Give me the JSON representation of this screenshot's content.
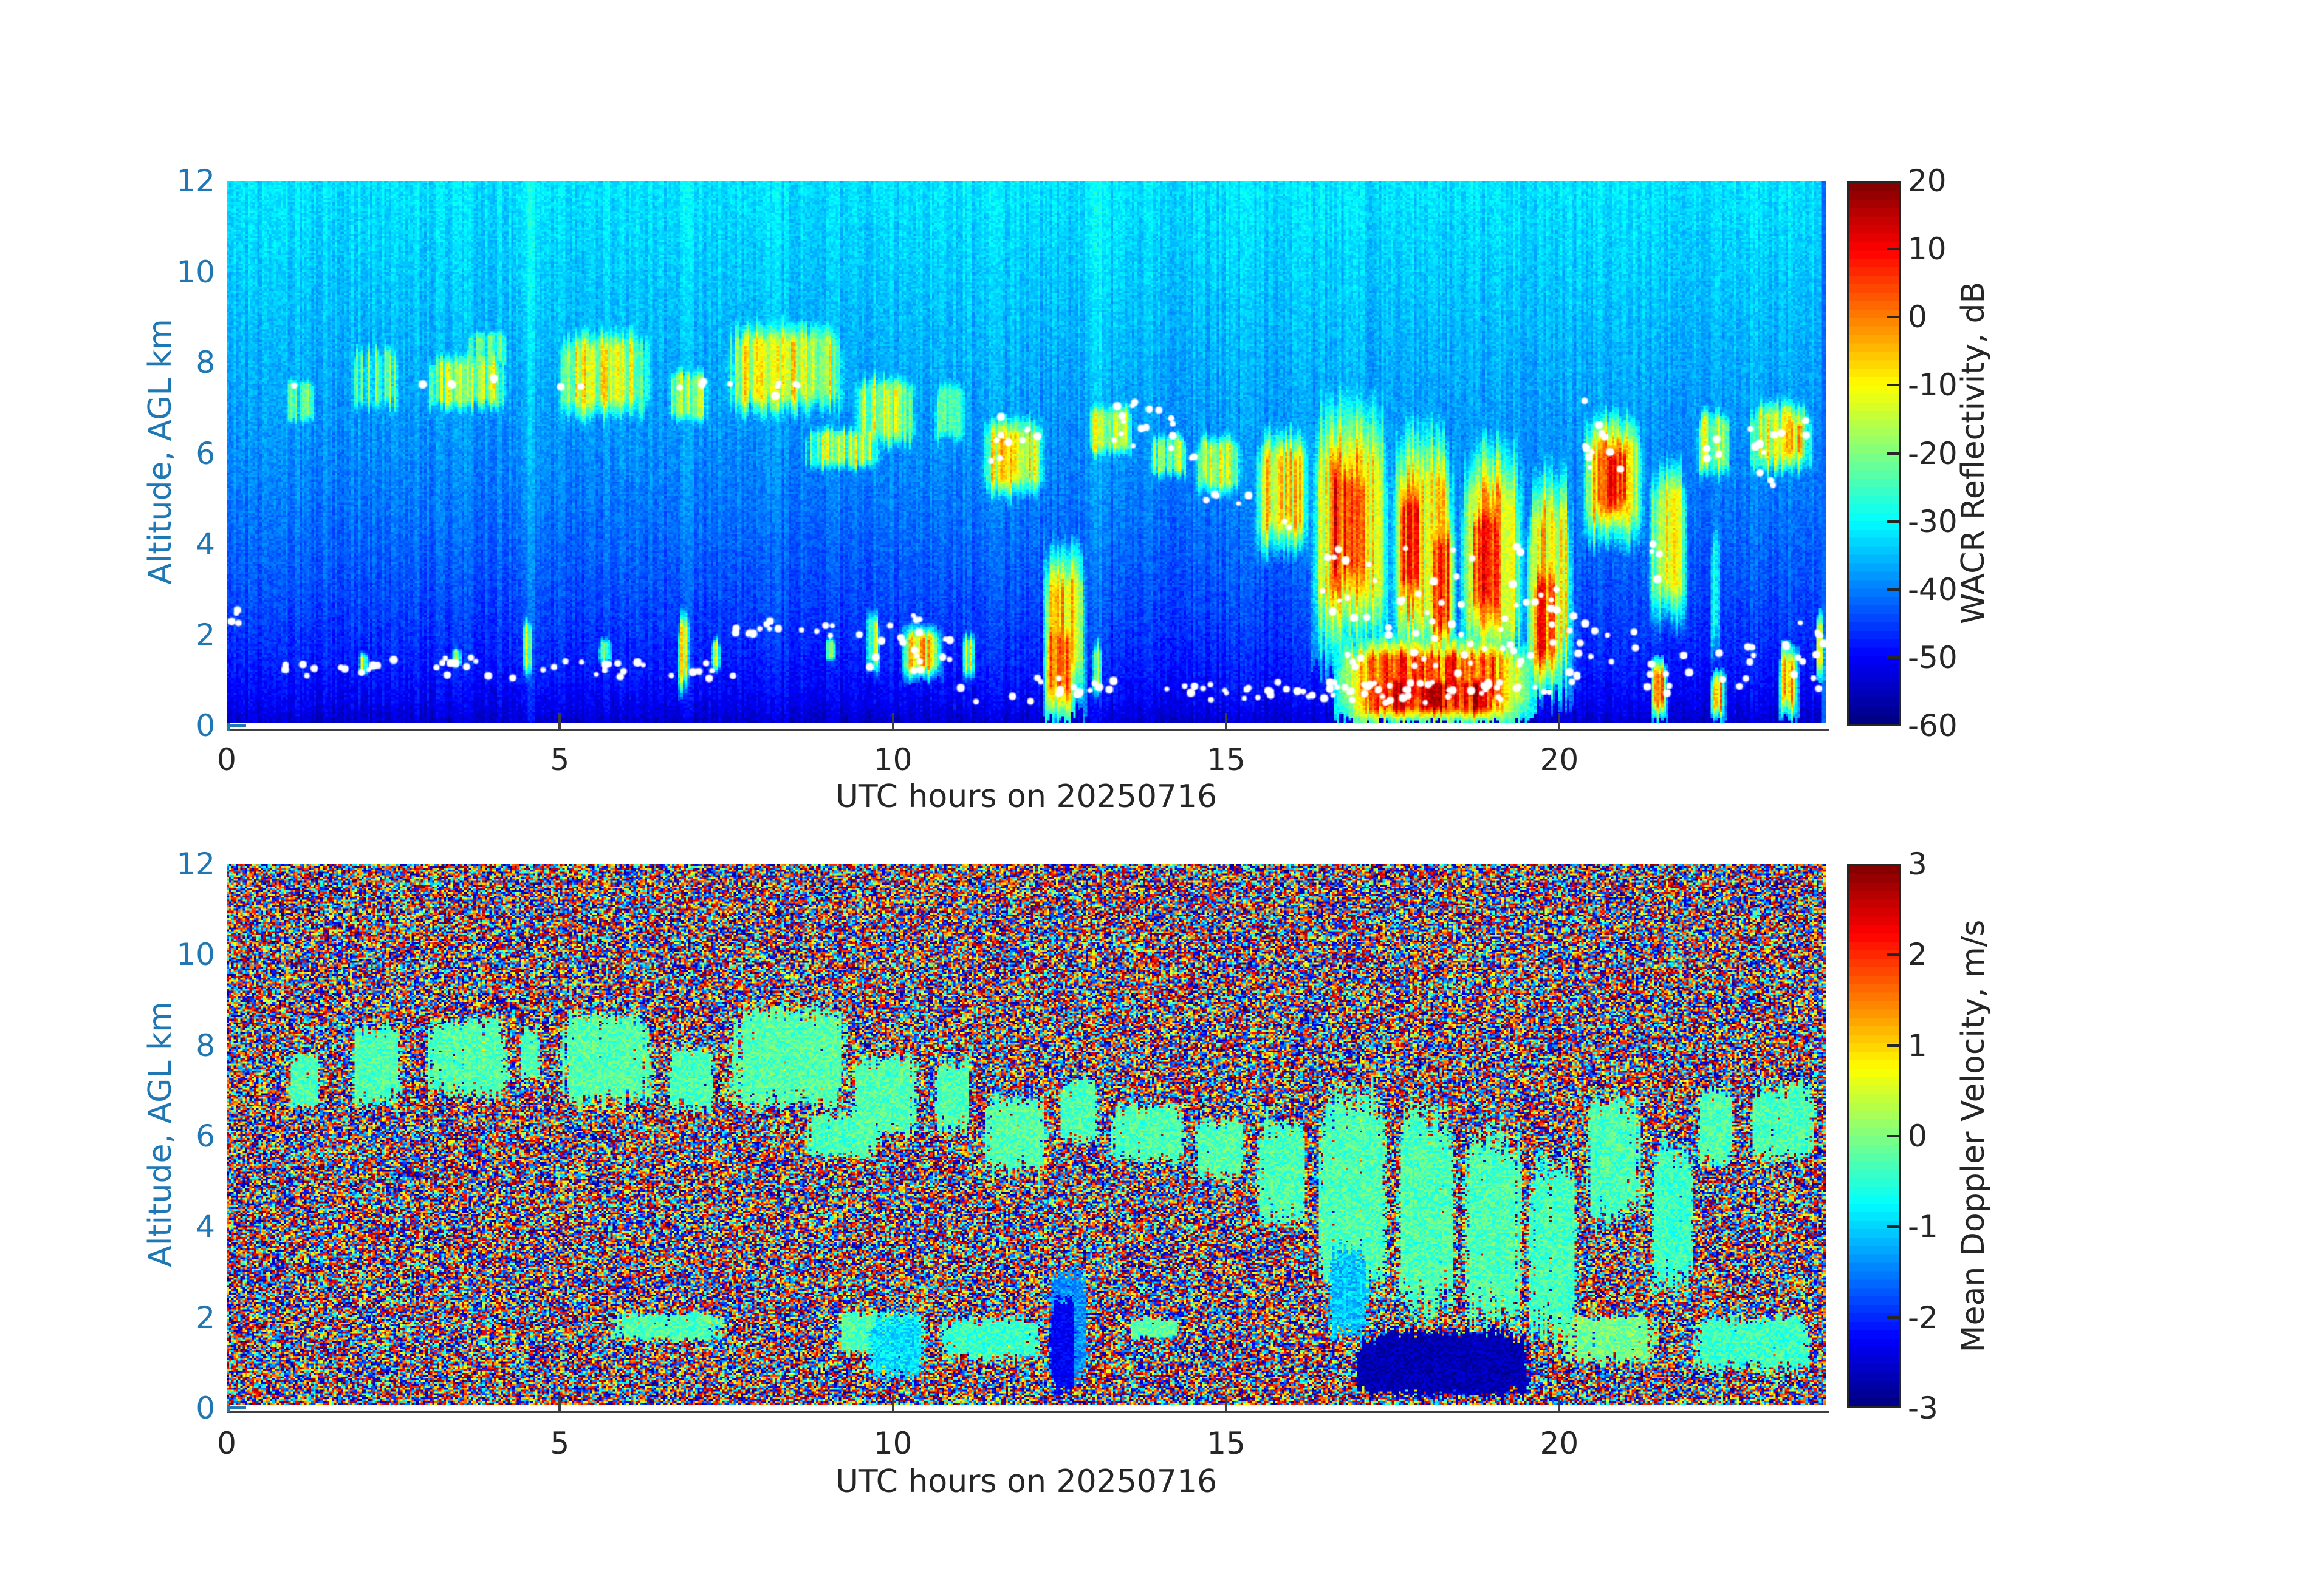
{
  "figure": {
    "background": "#ffffff",
    "axis_label_blue": "#1f77b4",
    "tick_label_dark": "#262626",
    "spine_color": "#3f3f3f",
    "dot_color": "#ffffff"
  },
  "chart_data": [
    {
      "id": "wacr_reflectivity",
      "type": "heatmap",
      "xlabel": "UTC hours on 20250716",
      "ylabel": "Altitude, AGL km",
      "colorbar_label": "WACR Reflectivity, dB",
      "xlim": [
        0,
        24
      ],
      "ylim": [
        0,
        12
      ],
      "clim": [
        -60,
        20
      ],
      "xticks": [
        0,
        5,
        10,
        15,
        20
      ],
      "yticks": [
        0,
        2,
        4,
        6,
        8,
        10,
        12
      ],
      "colorbar_ticks": [
        20,
        10,
        0,
        -10,
        -20,
        -30,
        -40,
        -50,
        -60
      ],
      "colormap": "jet",
      "grid": [
        680,
        256
      ],
      "background_model": {
        "type": "noise_gradient",
        "base": -56,
        "amp": 24,
        "pow": 0.5,
        "noise": 5,
        "column_noise": 2.2
      },
      "bright_columns": [
        [
          4.48,
          4.56,
          3
        ],
        [
          6.85,
          6.93,
          2.5
        ],
        [
          12.98,
          13.08,
          4
        ]
      ],
      "edge_column": {
        "t_start": 23.94,
        "value": -42
      },
      "blobs": [
        [
          0.85,
          1.35,
          6.3,
          8.0,
          -26
        ],
        [
          1.8,
          2.65,
          6.4,
          8.85,
          -24
        ],
        [
          2.9,
          4.3,
          6.6,
          8.5,
          -18
        ],
        [
          3.55,
          4.3,
          7.6,
          9.0,
          -26
        ],
        [
          4.9,
          6.45,
          6.3,
          9.1,
          -14
        ],
        [
          6.6,
          7.3,
          6.3,
          8.2,
          -21
        ],
        [
          7.4,
          9.4,
          6.4,
          9.3,
          -13
        ],
        [
          8.6,
          9.9,
          5.4,
          6.8,
          -19
        ],
        [
          9.35,
          10.4,
          5.7,
          8.1,
          -17
        ],
        [
          10.6,
          11.15,
          5.8,
          8.0,
          -21
        ],
        [
          11.3,
          12.3,
          4.7,
          7.1,
          -11
        ],
        [
          12.9,
          13.65,
          5.6,
          7.4,
          -19
        ],
        [
          13.8,
          14.45,
          5.2,
          6.7,
          -21
        ],
        [
          14.5,
          15.25,
          4.8,
          6.7,
          -15
        ],
        [
          15.45,
          16.25,
          3.4,
          6.9,
          -10
        ],
        [
          16.3,
          17.45,
          0.9,
          7.9,
          -6
        ],
        [
          16.55,
          17.15,
          2.2,
          6.5,
          6
        ],
        [
          17.5,
          18.45,
          0.6,
          7.3,
          -7
        ],
        [
          17.6,
          17.95,
          2.0,
          6.0,
          4
        ],
        [
          18.05,
          18.4,
          1.0,
          5.2,
          1
        ],
        [
          18.5,
          19.45,
          0.5,
          6.9,
          -8
        ],
        [
          18.65,
          19.15,
          1.5,
          5.6,
          4
        ],
        [
          19.5,
          20.2,
          0.2,
          6.3,
          -10
        ],
        [
          19.6,
          20.0,
          0.5,
          4.2,
          2
        ],
        [
          20.35,
          21.25,
          3.6,
          7.3,
          -8
        ],
        [
          20.5,
          21.1,
          4.2,
          6.7,
          3
        ],
        [
          21.35,
          21.95,
          1.6,
          6.5,
          -16
        ],
        [
          22.05,
          22.6,
          5.1,
          7.3,
          -19
        ],
        [
          22.28,
          22.38,
          0.5,
          5.5,
          -22
        ],
        [
          22.8,
          23.85,
          5.2,
          7.5,
          -15
        ],
        [
          23.25,
          23.7,
          5.6,
          7.0,
          -9
        ],
        [
          16.65,
          19.6,
          0.0,
          2.1,
          2
        ],
        [
          16.85,
          19.35,
          0.0,
          1.3,
          9
        ],
        [
          12.25,
          12.85,
          0.0,
          4.3,
          -6
        ],
        [
          12.3,
          12.7,
          0.0,
          2.7,
          4
        ],
        [
          2.0,
          2.12,
          1.0,
          1.7,
          -21
        ],
        [
          3.4,
          3.52,
          1.2,
          1.8,
          -23
        ],
        [
          4.45,
          4.58,
          0.8,
          2.6,
          -17
        ],
        [
          5.6,
          5.78,
          1.2,
          2.05,
          -21
        ],
        [
          6.78,
          6.92,
          0.5,
          2.8,
          -15
        ],
        [
          7.28,
          7.4,
          1.0,
          2.1,
          -21
        ],
        [
          9.0,
          9.12,
          1.3,
          2.05,
          -22
        ],
        [
          9.6,
          9.78,
          0.9,
          2.8,
          -18
        ],
        [
          10.15,
          10.7,
          0.9,
          2.35,
          -9
        ],
        [
          11.08,
          11.2,
          0.8,
          2.2,
          -16
        ],
        [
          13.0,
          13.1,
          0.3,
          2.2,
          -20
        ],
        [
          21.4,
          21.58,
          0.0,
          1.6,
          -4
        ],
        [
          22.3,
          22.46,
          0.0,
          1.3,
          -7
        ],
        [
          23.3,
          23.55,
          0.0,
          1.9,
          -5
        ],
        [
          23.87,
          24.0,
          0.8,
          2.6,
          -2
        ]
      ],
      "cloud_base_dots": {
        "color": "#ffffff",
        "bands": [
          [
            0.02,
            0.2,
            2.25,
            2.6,
            4
          ],
          [
            0.7,
            2.2,
            1.0,
            1.45,
            10
          ],
          [
            2.2,
            4.0,
            1.05,
            1.5,
            12
          ],
          [
            4.0,
            6.0,
            1.0,
            1.45,
            12
          ],
          [
            6.0,
            7.6,
            1.0,
            1.4,
            10
          ],
          [
            7.6,
            9.0,
            1.9,
            2.3,
            13
          ],
          [
            8.9,
            10.6,
            1.25,
            2.2,
            11
          ],
          [
            10.1,
            10.9,
            1.1,
            2.45,
            12
          ],
          [
            11.0,
            12.6,
            0.5,
            1.2,
            10
          ],
          [
            12.6,
            13.6,
            0.6,
            1.1,
            8
          ],
          [
            1.0,
            1.12,
            7.45,
            7.62,
            1
          ],
          [
            2.88,
            3.0,
            7.4,
            7.56,
            1
          ],
          [
            3.26,
            3.44,
            7.5,
            7.66,
            2
          ],
          [
            3.88,
            4.06,
            7.5,
            7.7,
            2
          ],
          [
            4.98,
            5.1,
            7.35,
            7.5,
            1
          ],
          [
            5.28,
            5.4,
            7.4,
            7.56,
            1
          ],
          [
            6.7,
            6.84,
            7.3,
            7.46,
            1
          ],
          [
            7.03,
            7.2,
            7.4,
            7.62,
            2
          ],
          [
            7.46,
            7.58,
            7.5,
            7.64,
            1
          ],
          [
            8.15,
            8.6,
            7.25,
            7.6,
            5
          ],
          [
            11.3,
            12.2,
            6.2,
            7.05,
            8
          ],
          [
            11.45,
            11.65,
            5.8,
            6.2,
            2
          ],
          [
            13.3,
            14.2,
            6.1,
            7.15,
            16
          ],
          [
            14.3,
            14.55,
            5.85,
            6.1,
            2
          ],
          [
            14.6,
            15.5,
            4.85,
            5.3,
            5
          ],
          [
            15.85,
            16.1,
            4.3,
            4.65,
            2
          ],
          [
            16.35,
            17.25,
            2.1,
            4.3,
            12
          ],
          [
            16.45,
            17.3,
            0.6,
            1.7,
            10
          ],
          [
            17.35,
            18.5,
            0.6,
            4.6,
            24
          ],
          [
            18.5,
            19.5,
            0.5,
            4.0,
            20
          ],
          [
            19.5,
            20.35,
            0.6,
            3.3,
            14
          ],
          [
            13.6,
            16.6,
            0.55,
            0.95,
            26
          ],
          [
            16.6,
            19.9,
            0.5,
            0.95,
            40
          ],
          [
            19.9,
            21.15,
            0.9,
            2.3,
            12
          ],
          [
            20.3,
            21.15,
            5.55,
            6.65,
            10
          ],
          [
            20.33,
            20.45,
            7.0,
            7.16,
            1
          ],
          [
            21.2,
            21.55,
            3.1,
            4.0,
            4
          ],
          [
            21.3,
            22.0,
            0.7,
            1.6,
            8
          ],
          [
            22.1,
            22.45,
            5.75,
            6.35,
            5
          ],
          [
            22.4,
            23.0,
            0.7,
            1.8,
            8
          ],
          [
            22.8,
            23.35,
            5.95,
            6.55,
            7
          ],
          [
            23.0,
            23.3,
            5.15,
            5.6,
            3
          ],
          [
            23.3,
            23.95,
            0.8,
            2.3,
            9
          ],
          [
            23.55,
            23.78,
            6.2,
            6.9,
            3
          ],
          [
            23.85,
            24.0,
            1.2,
            2.4,
            5
          ]
        ]
      }
    },
    {
      "id": "mean_doppler_velocity",
      "type": "heatmap",
      "xlabel": "UTC hours on 20250716",
      "ylabel": "Altitude, AGL km",
      "colorbar_label": "Mean Doppler Velocity, m/s",
      "xlim": [
        0,
        24
      ],
      "ylim": [
        0,
        12
      ],
      "clim": [
        -3,
        3
      ],
      "xticks": [
        0,
        5,
        10,
        15,
        20
      ],
      "yticks": [
        0,
        2,
        4,
        6,
        8,
        10,
        12
      ],
      "colorbar_ticks": [
        3,
        2,
        1,
        0,
        -1,
        -2,
        -3
      ],
      "colormap": "jet",
      "grid": [
        700,
        290
      ],
      "background_model": {
        "type": "speckle",
        "lo": -3,
        "hi": 3,
        "shape": 0.75
      },
      "blobs": [
        [
          0.9,
          1.45,
          6.3,
          8.1,
          -0.3
        ],
        [
          1.85,
          2.65,
          6.2,
          8.9,
          -0.3
        ],
        [
          2.9,
          4.35,
          6.4,
          9.0,
          -0.25
        ],
        [
          4.4,
          4.7,
          6.9,
          8.7,
          -0.3
        ],
        [
          4.9,
          6.5,
          6.2,
          9.2,
          -0.25
        ],
        [
          6.6,
          7.35,
          6.2,
          8.3,
          -0.3
        ],
        [
          7.4,
          9.45,
          6.0,
          9.4,
          -0.25
        ],
        [
          8.6,
          9.9,
          5.3,
          6.7,
          -0.3
        ],
        [
          9.35,
          10.45,
          5.5,
          8.2,
          -0.25
        ],
        [
          10.6,
          11.2,
          5.7,
          8.1,
          -0.3
        ],
        [
          11.3,
          12.35,
          4.7,
          7.3,
          -0.25
        ],
        [
          12.45,
          13.1,
          5.4,
          7.6,
          -0.3
        ],
        [
          13.2,
          14.45,
          5.1,
          7.0,
          -0.3
        ],
        [
          14.5,
          15.3,
          4.7,
          6.7,
          -0.25
        ],
        [
          15.4,
          16.25,
          3.3,
          7.0,
          -0.3
        ],
        [
          16.3,
          17.5,
          1.4,
          8.0,
          -0.3
        ],
        [
          16.5,
          17.2,
          1.0,
          4.0,
          -1.1
        ],
        [
          17.5,
          18.5,
          0.8,
          7.6,
          -0.3
        ],
        [
          18.5,
          19.5,
          0.7,
          7.1,
          -0.3
        ],
        [
          19.5,
          20.3,
          0.5,
          6.4,
          -0.35
        ],
        [
          20.3,
          21.3,
          3.4,
          7.4,
          -0.3
        ],
        [
          20.0,
          21.6,
          0.7,
          2.3,
          -0.1
        ],
        [
          21.35,
          22.05,
          1.8,
          6.6,
          -0.4
        ],
        [
          22.05,
          22.65,
          4.9,
          7.4,
          -0.3
        ],
        [
          22.8,
          23.9,
          5.0,
          7.6,
          -0.3
        ],
        [
          5.65,
          7.6,
          1.3,
          2.25,
          -0.3
        ],
        [
          9.0,
          10.6,
          1.0,
          2.3,
          -0.3
        ],
        [
          9.55,
          10.55,
          0.3,
          2.4,
          -0.9
        ],
        [
          10.6,
          12.3,
          0.8,
          2.2,
          -0.4
        ],
        [
          12.3,
          12.95,
          0.0,
          3.6,
          -1.4
        ],
        [
          13.5,
          14.3,
          1.4,
          2.1,
          -0.2
        ],
        [
          16.8,
          19.65,
          0.0,
          1.9,
          -2.7
        ],
        [
          12.35,
          12.75,
          0.0,
          2.8,
          -2.3
        ],
        [
          21.9,
          23.9,
          0.5,
          2.3,
          -0.4
        ]
      ]
    }
  ]
}
